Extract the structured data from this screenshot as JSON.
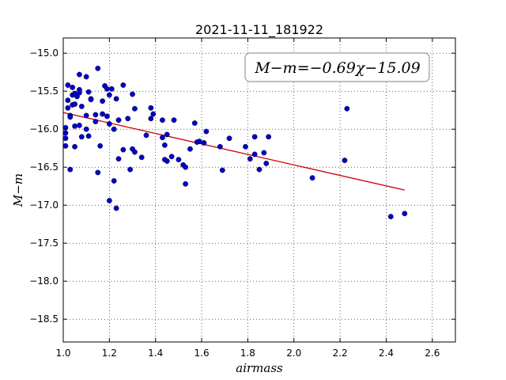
{
  "chart_data": {
    "type": "scatter",
    "title": "2021-11-11_181922",
    "xlabel": "airmass",
    "ylabel": "M−m",
    "xlim": [
      1.0,
      2.7
    ],
    "ylim": [
      -18.8,
      -14.8
    ],
    "xticks": [
      "1.0",
      "1.2",
      "1.4",
      "1.6",
      "1.8",
      "2.0",
      "2.2",
      "2.4",
      "2.6"
    ],
    "yticks": [
      "−15.0",
      "−15.5",
      "−16.0",
      "−16.5",
      "−17.0",
      "−17.5",
      "−18.0",
      "−18.5"
    ],
    "grid": true,
    "colors": {
      "points": "#0000cc",
      "fit_line": "#cc0000",
      "annotation_box": "#999999"
    },
    "annotation": {
      "text": "M−m=−0.69χ−15.09",
      "position": "top-right"
    },
    "fit": {
      "slope": -0.69,
      "intercept": -15.09,
      "x_range": [
        1.0,
        2.48
      ]
    },
    "points": [
      {
        "x": 1.01,
        "y": -15.98
      },
      {
        "x": 1.01,
        "y": -16.12
      },
      {
        "x": 1.01,
        "y": -16.22
      },
      {
        "x": 1.01,
        "y": -16.05
      },
      {
        "x": 1.02,
        "y": -15.42
      },
      {
        "x": 1.02,
        "y": -15.62
      },
      {
        "x": 1.02,
        "y": -15.72
      },
      {
        "x": 1.03,
        "y": -15.82
      },
      {
        "x": 1.03,
        "y": -15.84
      },
      {
        "x": 1.03,
        "y": -16.53
      },
      {
        "x": 1.04,
        "y": -15.45
      },
      {
        "x": 1.04,
        "y": -15.55
      },
      {
        "x": 1.04,
        "y": -15.68
      },
      {
        "x": 1.05,
        "y": -15.53
      },
      {
        "x": 1.05,
        "y": -15.67
      },
      {
        "x": 1.05,
        "y": -15.96
      },
      {
        "x": 1.05,
        "y": -16.23
      },
      {
        "x": 1.06,
        "y": -15.57
      },
      {
        "x": 1.07,
        "y": -15.48
      },
      {
        "x": 1.07,
        "y": -15.52
      },
      {
        "x": 1.07,
        "y": -15.95
      },
      {
        "x": 1.07,
        "y": -15.28
      },
      {
        "x": 1.08,
        "y": -15.7
      },
      {
        "x": 1.08,
        "y": -16.1
      },
      {
        "x": 1.1,
        "y": -15.31
      },
      {
        "x": 1.1,
        "y": -16.0
      },
      {
        "x": 1.1,
        "y": -15.82
      },
      {
        "x": 1.11,
        "y": -15.51
      },
      {
        "x": 1.11,
        "y": -16.09
      },
      {
        "x": 1.12,
        "y": -15.6
      },
      {
        "x": 1.12,
        "y": -15.61
      },
      {
        "x": 1.14,
        "y": -15.81
      },
      {
        "x": 1.14,
        "y": -15.9
      },
      {
        "x": 1.15,
        "y": -15.2
      },
      {
        "x": 1.15,
        "y": -16.57
      },
      {
        "x": 1.16,
        "y": -16.22
      },
      {
        "x": 1.17,
        "y": -15.63
      },
      {
        "x": 1.17,
        "y": -15.8
      },
      {
        "x": 1.18,
        "y": -15.43
      },
      {
        "x": 1.19,
        "y": -15.47
      },
      {
        "x": 1.19,
        "y": -15.83
      },
      {
        "x": 1.2,
        "y": -15.55
      },
      {
        "x": 1.2,
        "y": -15.93
      },
      {
        "x": 1.2,
        "y": -16.94
      },
      {
        "x": 1.21,
        "y": -15.47
      },
      {
        "x": 1.22,
        "y": -16.68
      },
      {
        "x": 1.22,
        "y": -16.0
      },
      {
        "x": 1.23,
        "y": -17.04
      },
      {
        "x": 1.23,
        "y": -15.6
      },
      {
        "x": 1.24,
        "y": -15.88
      },
      {
        "x": 1.24,
        "y": -16.39
      },
      {
        "x": 1.26,
        "y": -15.42
      },
      {
        "x": 1.26,
        "y": -16.27
      },
      {
        "x": 1.28,
        "y": -15.86
      },
      {
        "x": 1.29,
        "y": -16.53
      },
      {
        "x": 1.3,
        "y": -15.54
      },
      {
        "x": 1.3,
        "y": -16.26
      },
      {
        "x": 1.31,
        "y": -15.73
      },
      {
        "x": 1.31,
        "y": -16.3
      },
      {
        "x": 1.34,
        "y": -16.37
      },
      {
        "x": 1.36,
        "y": -16.08
      },
      {
        "x": 1.38,
        "y": -15.72
      },
      {
        "x": 1.38,
        "y": -15.86
      },
      {
        "x": 1.39,
        "y": -15.8
      },
      {
        "x": 1.43,
        "y": -16.11
      },
      {
        "x": 1.43,
        "y": -15.88
      },
      {
        "x": 1.44,
        "y": -16.21
      },
      {
        "x": 1.44,
        "y": -16.4
      },
      {
        "x": 1.45,
        "y": -16.42
      },
      {
        "x": 1.45,
        "y": -16.07
      },
      {
        "x": 1.47,
        "y": -16.36
      },
      {
        "x": 1.48,
        "y": -15.88
      },
      {
        "x": 1.5,
        "y": -16.4
      },
      {
        "x": 1.52,
        "y": -16.47
      },
      {
        "x": 1.53,
        "y": -16.5
      },
      {
        "x": 1.53,
        "y": -16.72
      },
      {
        "x": 1.55,
        "y": -16.26
      },
      {
        "x": 1.57,
        "y": -15.92
      },
      {
        "x": 1.58,
        "y": -16.17
      },
      {
        "x": 1.59,
        "y": -16.16
      },
      {
        "x": 1.61,
        "y": -16.18
      },
      {
        "x": 1.62,
        "y": -16.03
      },
      {
        "x": 1.68,
        "y": -16.23
      },
      {
        "x": 1.69,
        "y": -16.54
      },
      {
        "x": 1.72,
        "y": -16.12
      },
      {
        "x": 1.79,
        "y": -16.23
      },
      {
        "x": 1.81,
        "y": -16.39
      },
      {
        "x": 1.83,
        "y": -16.1
      },
      {
        "x": 1.83,
        "y": -16.33
      },
      {
        "x": 1.85,
        "y": -16.53
      },
      {
        "x": 1.87,
        "y": -16.31
      },
      {
        "x": 1.88,
        "y": -16.45
      },
      {
        "x": 1.89,
        "y": -16.1
      },
      {
        "x": 2.08,
        "y": -16.64
      },
      {
        "x": 2.22,
        "y": -16.41
      },
      {
        "x": 2.23,
        "y": -15.73
      },
      {
        "x": 2.42,
        "y": -17.15
      },
      {
        "x": 2.48,
        "y": -17.11
      }
    ]
  }
}
